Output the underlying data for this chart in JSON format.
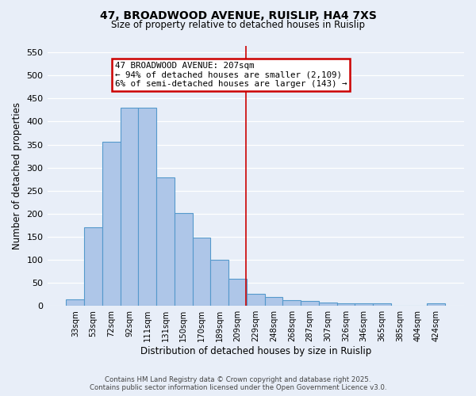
{
  "title_line1": "47, BROADWOOD AVENUE, RUISLIP, HA4 7XS",
  "title_line2": "Size of property relative to detached houses in Ruislip",
  "xlabel": "Distribution of detached houses by size in Ruislip",
  "ylabel": "Number of detached properties",
  "categories": [
    "33sqm",
    "53sqm",
    "72sqm",
    "92sqm",
    "111sqm",
    "131sqm",
    "150sqm",
    "170sqm",
    "189sqm",
    "209sqm",
    "229sqm",
    "248sqm",
    "268sqm",
    "287sqm",
    "307sqm",
    "326sqm",
    "346sqm",
    "365sqm",
    "385sqm",
    "404sqm",
    "424sqm"
  ],
  "values": [
    14,
    170,
    357,
    430,
    430,
    278,
    202,
    149,
    100,
    58,
    27,
    20,
    12,
    11,
    7,
    6,
    5,
    5,
    0,
    0,
    5
  ],
  "bar_color": "#aec6e8",
  "bar_edge_color": "#5599cc",
  "red_line_index": 9.45,
  "annotation_title": "47 BROADWOOD AVENUE: 207sqm",
  "annotation_line2": "← 94% of detached houses are smaller (2,109)",
  "annotation_line3": "6% of semi-detached houses are larger (143) →",
  "annotation_box_color": "#ffffff",
  "annotation_box_edge": "#cc0000",
  "red_line_color": "#cc0000",
  "ylim": [
    0,
    565
  ],
  "yticks": [
    0,
    50,
    100,
    150,
    200,
    250,
    300,
    350,
    400,
    450,
    500,
    550
  ],
  "bg_color": "#e8eef8",
  "footer_line1": "Contains HM Land Registry data © Crown copyright and database right 2025.",
  "footer_line2": "Contains public sector information licensed under the Open Government Licence v3.0."
}
